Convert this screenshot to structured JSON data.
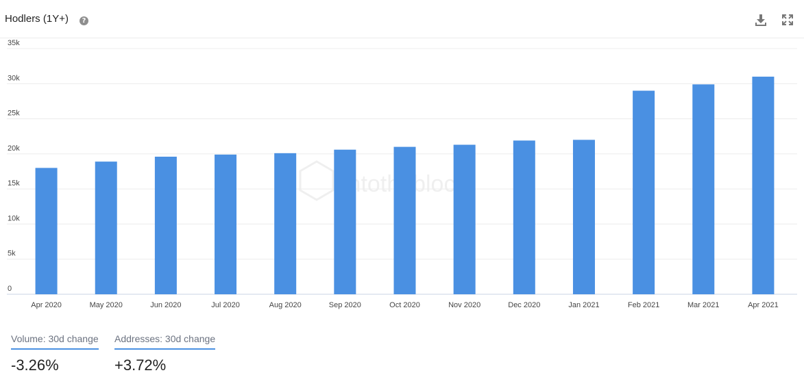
{
  "header": {
    "title": "Hodlers (1Y+)",
    "help_glyph": "?",
    "icons": {
      "help": "help-circle-icon",
      "download": "download-icon",
      "expand": "expand-icon"
    }
  },
  "watermark": {
    "text": "intotheblock"
  },
  "stats": [
    {
      "label": "Volume: 30d change",
      "value": "-3.26%"
    },
    {
      "label": "Addresses: 30d change",
      "value": "+3.72%"
    }
  ],
  "colors": {
    "bar": "#4a90e2",
    "grid": "#ececec",
    "axis_text": "#444444",
    "accent": "#4a90e2"
  },
  "chart_data": {
    "type": "bar",
    "title": "Hodlers (1Y+)",
    "categories": [
      "Apr 2020",
      "May 2020",
      "Jun 2020",
      "Jul 2020",
      "Aug 2020",
      "Sep 2020",
      "Oct 2020",
      "Nov 2020",
      "Dec 2020",
      "Jan 2021",
      "Feb 2021",
      "Mar 2021",
      "Apr 2021"
    ],
    "values": [
      18000,
      18900,
      19600,
      19900,
      20100,
      20600,
      21000,
      21300,
      21900,
      22000,
      29000,
      29900,
      31000
    ],
    "ylim": [
      0,
      35000
    ],
    "yticks": [
      0,
      5000,
      10000,
      15000,
      20000,
      25000,
      30000,
      35000
    ],
    "ytick_labels": [
      "0",
      "5k",
      "10k",
      "15k",
      "20k",
      "25k",
      "30k",
      "35k"
    ],
    "grid": true,
    "legend": "none"
  }
}
